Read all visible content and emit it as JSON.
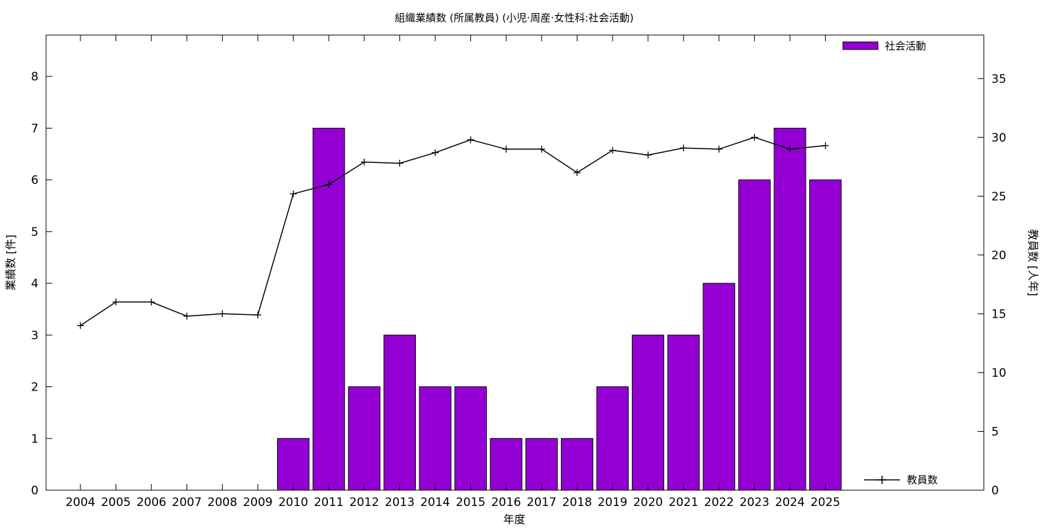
{
  "chart_data": {
    "type": "bar",
    "title": "組織業績数 (所属教員) (小児·周産·女性科:社会活動)",
    "xlabel": "年度",
    "ylabel": "業績数 [件]",
    "y2label": "教員数 [人年]",
    "categories": [
      "2004",
      "2005",
      "2006",
      "2007",
      "2008",
      "2009",
      "2010",
      "2011",
      "2012",
      "2013",
      "2014",
      "2015",
      "2016",
      "2017",
      "2018",
      "2019",
      "2020",
      "2021",
      "2022",
      "2023",
      "2024",
      "2025"
    ],
    "series": [
      {
        "name": "社会活動",
        "type": "bar",
        "axis": "left",
        "color": "#9400d3",
        "values": [
          0,
          0,
          0,
          0,
          0,
          0,
          1,
          7,
          2,
          3,
          2,
          2,
          1,
          1,
          1,
          2,
          3,
          3,
          4,
          6,
          7,
          6
        ]
      },
      {
        "name": "教員数",
        "type": "line",
        "axis": "right",
        "color": "#000000",
        "values": [
          14.0,
          16.0,
          16.0,
          14.8,
          15.0,
          14.9,
          25.2,
          26.0,
          27.9,
          27.8,
          28.7,
          29.8,
          29.0,
          29.0,
          27.0,
          28.9,
          28.5,
          29.1,
          29.0,
          30.0,
          29.0,
          29.3
        ]
      }
    ],
    "ylim": [
      0,
      8.8
    ],
    "y2lim": [
      0,
      38.7
    ],
    "yticks": [
      "0",
      "1",
      "2",
      "3",
      "4",
      "5",
      "6",
      "7",
      "8"
    ],
    "y2ticks": [
      "0",
      "5",
      "10",
      "15",
      "20",
      "25",
      "30",
      "35"
    ],
    "grid": false,
    "legend": "top-right / bottom-right"
  }
}
